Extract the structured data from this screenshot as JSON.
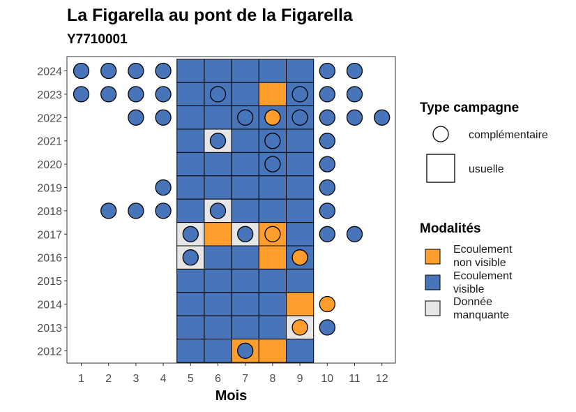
{
  "chart_data": {
    "type": "heatmap",
    "title": "La Figarella au pont de la Figarella",
    "subtitle": "Y7710001",
    "xlabel": "Mois",
    "ylabel": "",
    "x_ticks": [
      "1",
      "2",
      "3",
      "4",
      "5",
      "6",
      "7",
      "8",
      "9",
      "10",
      "11",
      "12"
    ],
    "y_ticks": [
      "2012",
      "2013",
      "2014",
      "2015",
      "2016",
      "2017",
      "2018",
      "2019",
      "2020",
      "2021",
      "2022",
      "2023",
      "2024"
    ],
    "xlim": [
      1,
      12
    ],
    "ylim": [
      2012,
      2024
    ],
    "grid": false,
    "colors": {
      "ecoulement_non_visible": "#FF9E2C",
      "ecoulement_visible": "#4874BA",
      "donnee_manquante": "#E6E6E6"
    },
    "legend_type": {
      "title": "Type campagne",
      "entries": [
        {
          "key": "complementaire",
          "label": "complémentaire",
          "shape": "circle"
        },
        {
          "key": "usuelle",
          "label": "usuelle",
          "shape": "square"
        }
      ]
    },
    "legend_modalites": {
      "title": "Modalités",
      "entries": [
        {
          "key": "ecoulement_non_visible",
          "label": "Ecoulement non visible",
          "lines": [
            "Ecoulement",
            "non visible"
          ]
        },
        {
          "key": "ecoulement_visible",
          "label": "Ecoulement visible",
          "lines": [
            "Ecoulement",
            "visible"
          ]
        },
        {
          "key": "donnee_manquante",
          "label": "Donnée manquante",
          "lines": [
            "Donnée",
            "manquante"
          ]
        }
      ]
    },
    "usuelle": [
      {
        "year": 2024,
        "months": [
          "V",
          "V",
          "V",
          "V",
          "V"
        ]
      },
      {
        "year": 2023,
        "months": [
          "V",
          "V",
          "V",
          "N",
          "V"
        ]
      },
      {
        "year": 2022,
        "months": [
          "V",
          "V",
          "V",
          "V",
          "V"
        ]
      },
      {
        "year": 2021,
        "months": [
          "V",
          "M",
          "V",
          "V",
          "V"
        ]
      },
      {
        "year": 2020,
        "months": [
          "V",
          "V",
          "V",
          "V",
          "V"
        ]
      },
      {
        "year": 2019,
        "months": [
          "V",
          "V",
          "V",
          "V",
          "V"
        ]
      },
      {
        "year": 2018,
        "months": [
          "V",
          "M",
          "V",
          "V",
          "V"
        ]
      },
      {
        "year": 2017,
        "months": [
          "M",
          "N",
          "M",
          "N",
          "V"
        ]
      },
      {
        "year": 2016,
        "months": [
          "M",
          "V",
          "V",
          "N",
          "V"
        ]
      },
      {
        "year": 2015,
        "months": [
          "V",
          "V",
          "V",
          "V",
          "V"
        ]
      },
      {
        "year": 2014,
        "months": [
          "V",
          "V",
          "V",
          "V",
          "N"
        ]
      },
      {
        "year": 2013,
        "months": [
          "V",
          "V",
          "V",
          "V",
          "M"
        ]
      },
      {
        "year": 2012,
        "months": [
          "V",
          "V",
          "N",
          "N",
          "V"
        ]
      }
    ],
    "usuelle_months": [
      5,
      6,
      7,
      8,
      9
    ],
    "complementaire": [
      {
        "year": 2024,
        "month": 1,
        "m": "V"
      },
      {
        "year": 2024,
        "month": 2,
        "m": "V"
      },
      {
        "year": 2024,
        "month": 3,
        "m": "V"
      },
      {
        "year": 2024,
        "month": 4,
        "m": "V"
      },
      {
        "year": 2024,
        "month": 10,
        "m": "V"
      },
      {
        "year": 2024,
        "month": 11,
        "m": "V"
      },
      {
        "year": 2023,
        "month": 1,
        "m": "V"
      },
      {
        "year": 2023,
        "month": 2,
        "m": "V"
      },
      {
        "year": 2023,
        "month": 3,
        "m": "V"
      },
      {
        "year": 2023,
        "month": 4,
        "m": "V"
      },
      {
        "year": 2023,
        "month": 6,
        "m": "V"
      },
      {
        "year": 2023,
        "month": 9,
        "m": "V"
      },
      {
        "year": 2023,
        "month": 10,
        "m": "V"
      },
      {
        "year": 2023,
        "month": 11,
        "m": "V"
      },
      {
        "year": 2022,
        "month": 3,
        "m": "V"
      },
      {
        "year": 2022,
        "month": 4,
        "m": "V"
      },
      {
        "year": 2022,
        "month": 7,
        "m": "V"
      },
      {
        "year": 2022,
        "month": 8,
        "m": "N"
      },
      {
        "year": 2022,
        "month": 9,
        "m": "V"
      },
      {
        "year": 2022,
        "month": 10,
        "m": "V"
      },
      {
        "year": 2022,
        "month": 11,
        "m": "V"
      },
      {
        "year": 2022,
        "month": 12,
        "m": "V"
      },
      {
        "year": 2021,
        "month": 6,
        "m": "V"
      },
      {
        "year": 2021,
        "month": 8,
        "m": "V"
      },
      {
        "year": 2021,
        "month": 10,
        "m": "V"
      },
      {
        "year": 2020,
        "month": 8,
        "m": "V"
      },
      {
        "year": 2020,
        "month": 10,
        "m": "V"
      },
      {
        "year": 2019,
        "month": 4,
        "m": "V"
      },
      {
        "year": 2019,
        "month": 10,
        "m": "V"
      },
      {
        "year": 2018,
        "month": 2,
        "m": "V"
      },
      {
        "year": 2018,
        "month": 3,
        "m": "V"
      },
      {
        "year": 2018,
        "month": 4,
        "m": "V"
      },
      {
        "year": 2018,
        "month": 6,
        "m": "V"
      },
      {
        "year": 2018,
        "month": 10,
        "m": "V"
      },
      {
        "year": 2017,
        "month": 5,
        "m": "V"
      },
      {
        "year": 2017,
        "month": 7,
        "m": "V"
      },
      {
        "year": 2017,
        "month": 8,
        "m": "N"
      },
      {
        "year": 2017,
        "month": 10,
        "m": "V"
      },
      {
        "year": 2017,
        "month": 11,
        "m": "V"
      },
      {
        "year": 2016,
        "month": 5,
        "m": "V"
      },
      {
        "year": 2016,
        "month": 9,
        "m": "N"
      },
      {
        "year": 2014,
        "month": 10,
        "m": "N"
      },
      {
        "year": 2013,
        "month": 9,
        "m": "N"
      },
      {
        "year": 2013,
        "month": 10,
        "m": "V"
      },
      {
        "year": 2012,
        "month": 7,
        "m": "V"
      }
    ]
  }
}
